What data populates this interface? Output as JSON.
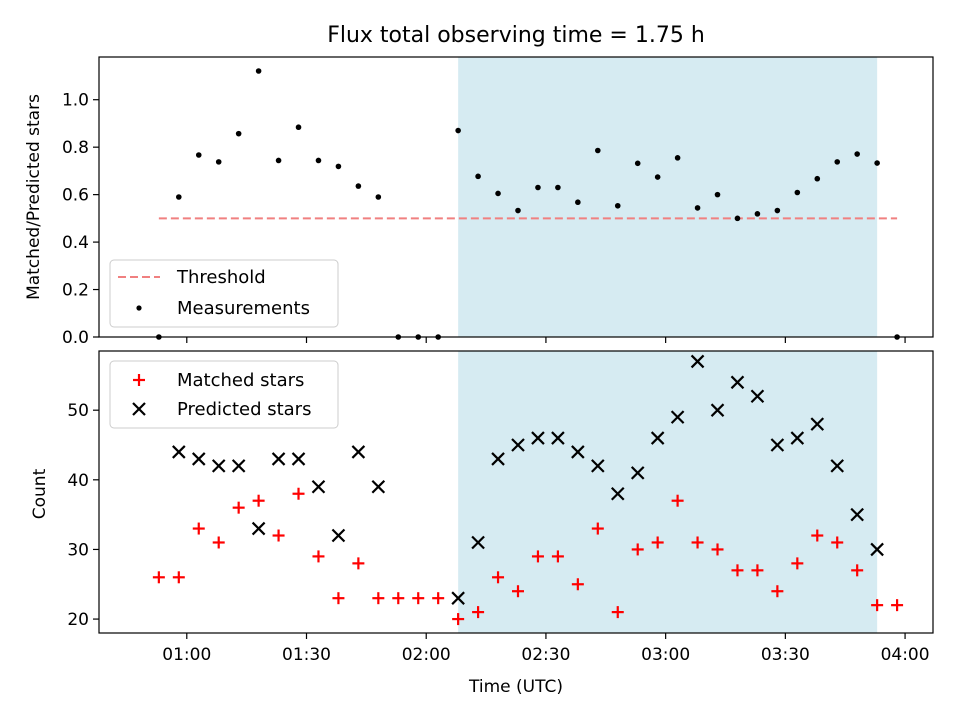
{
  "figure": {
    "title": "Flux total observing time = 1.75 h",
    "xlabel": "Time (UTC)"
  },
  "chart_data": [
    {
      "type": "scatter",
      "panel": "top",
      "ylabel": "Matched/Predicted stars",
      "xlabel": "",
      "xlim": [
        "00:38",
        "04:07"
      ],
      "ylim": [
        0,
        1.18
      ],
      "yticks": [
        0.0,
        0.2,
        0.4,
        0.6,
        0.8,
        1.0
      ],
      "ytick_labels": [
        "0.0",
        "0.2",
        "0.4",
        "0.6",
        "0.8",
        "1.0"
      ],
      "xticks": [
        "01:00",
        "01:30",
        "02:00",
        "02:30",
        "03:00",
        "03:30",
        "04:00"
      ],
      "shaded_span": {
        "start": "02:08",
        "end": "03:53",
        "color": "#add8e6"
      },
      "legend_position": "lower left",
      "series": [
        {
          "name": "Threshold",
          "style": "dashed-line",
          "color": "#f08080",
          "x": [
            "00:53",
            "03:58"
          ],
          "y": [
            0.5,
            0.5
          ]
        },
        {
          "name": "Measurements",
          "style": "dot",
          "color": "#000000",
          "x": [
            "00:53",
            "00:58",
            "01:03",
            "01:08",
            "01:13",
            "01:18",
            "01:23",
            "01:28",
            "01:33",
            "01:38",
            "01:43",
            "01:48",
            "01:53",
            "01:58",
            "02:03",
            "02:08",
            "02:13",
            "02:18",
            "02:23",
            "02:28",
            "02:33",
            "02:38",
            "02:43",
            "02:48",
            "02:53",
            "02:58",
            "03:03",
            "03:08",
            "03:13",
            "03:18",
            "03:23",
            "03:28",
            "03:33",
            "03:38",
            "03:43",
            "03:48",
            "03:53",
            "03:58"
          ],
          "y": [
            0.0,
            0.59,
            0.767,
            0.738,
            0.857,
            1.121,
            0.744,
            0.884,
            0.744,
            0.719,
            0.636,
            0.59,
            0.0,
            0.0,
            0.0,
            0.87,
            0.677,
            0.605,
            0.533,
            0.63,
            0.63,
            0.568,
            0.786,
            0.553,
            0.732,
            0.674,
            0.755,
            0.544,
            0.6,
            0.5,
            0.519,
            0.533,
            0.609,
            0.667,
            0.738,
            0.771,
            0.733,
            0.0
          ]
        }
      ]
    },
    {
      "type": "scatter",
      "panel": "bottom",
      "ylabel": "Count",
      "xlabel": "Time (UTC)",
      "xlim": [
        "00:38",
        "04:07"
      ],
      "ylim": [
        18,
        58.5
      ],
      "yticks": [
        20,
        30,
        40,
        50
      ],
      "ytick_labels": [
        "20",
        "30",
        "40",
        "50"
      ],
      "xticks": [
        "01:00",
        "01:30",
        "02:00",
        "02:30",
        "03:00",
        "03:30",
        "04:00"
      ],
      "xtick_labels": [
        "01:00",
        "01:30",
        "02:00",
        "02:30",
        "03:00",
        "03:30",
        "04:00"
      ],
      "shaded_span": {
        "start": "02:08",
        "end": "03:53",
        "color": "#add8e6"
      },
      "legend_position": "upper left",
      "series": [
        {
          "name": "Matched stars",
          "style": "plus",
          "color": "#ff0000",
          "x": [
            "00:53",
            "00:58",
            "01:03",
            "01:08",
            "01:13",
            "01:18",
            "01:23",
            "01:28",
            "01:33",
            "01:38",
            "01:43",
            "01:48",
            "01:53",
            "01:58",
            "02:03",
            "02:08",
            "02:13",
            "02:18",
            "02:23",
            "02:28",
            "02:33",
            "02:38",
            "02:43",
            "02:48",
            "02:53",
            "02:58",
            "03:03",
            "03:08",
            "03:13",
            "03:18",
            "03:23",
            "03:28",
            "03:33",
            "03:38",
            "03:43",
            "03:48",
            "03:53",
            "03:58"
          ],
          "y": [
            26,
            26,
            33,
            31,
            36,
            37,
            32,
            38,
            29,
            23,
            28,
            23,
            23,
            23,
            23,
            20,
            21,
            26,
            24,
            29,
            29,
            25,
            33,
            21,
            30,
            31,
            37,
            31,
            30,
            27,
            27,
            24,
            28,
            32,
            31,
            27,
            22,
            22
          ]
        },
        {
          "name": "Predicted stars",
          "style": "x",
          "color": "#000000",
          "x": [
            "00:58",
            "01:03",
            "01:08",
            "01:13",
            "01:18",
            "01:23",
            "01:28",
            "01:33",
            "01:38",
            "01:43",
            "01:48",
            "02:08",
            "02:13",
            "02:18",
            "02:23",
            "02:28",
            "02:33",
            "02:38",
            "02:43",
            "02:48",
            "02:53",
            "02:58",
            "03:03",
            "03:08",
            "03:13",
            "03:18",
            "03:23",
            "03:28",
            "03:33",
            "03:38",
            "03:43",
            "03:48",
            "03:53"
          ],
          "y": [
            44,
            43,
            42,
            42,
            33,
            43,
            43,
            39,
            32,
            44,
            39,
            23,
            31,
            43,
            45,
            46,
            46,
            44,
            42,
            38,
            41,
            46,
            49,
            57,
            50,
            54,
            52,
            45,
            46,
            48,
            42,
            35,
            30
          ]
        }
      ]
    }
  ]
}
